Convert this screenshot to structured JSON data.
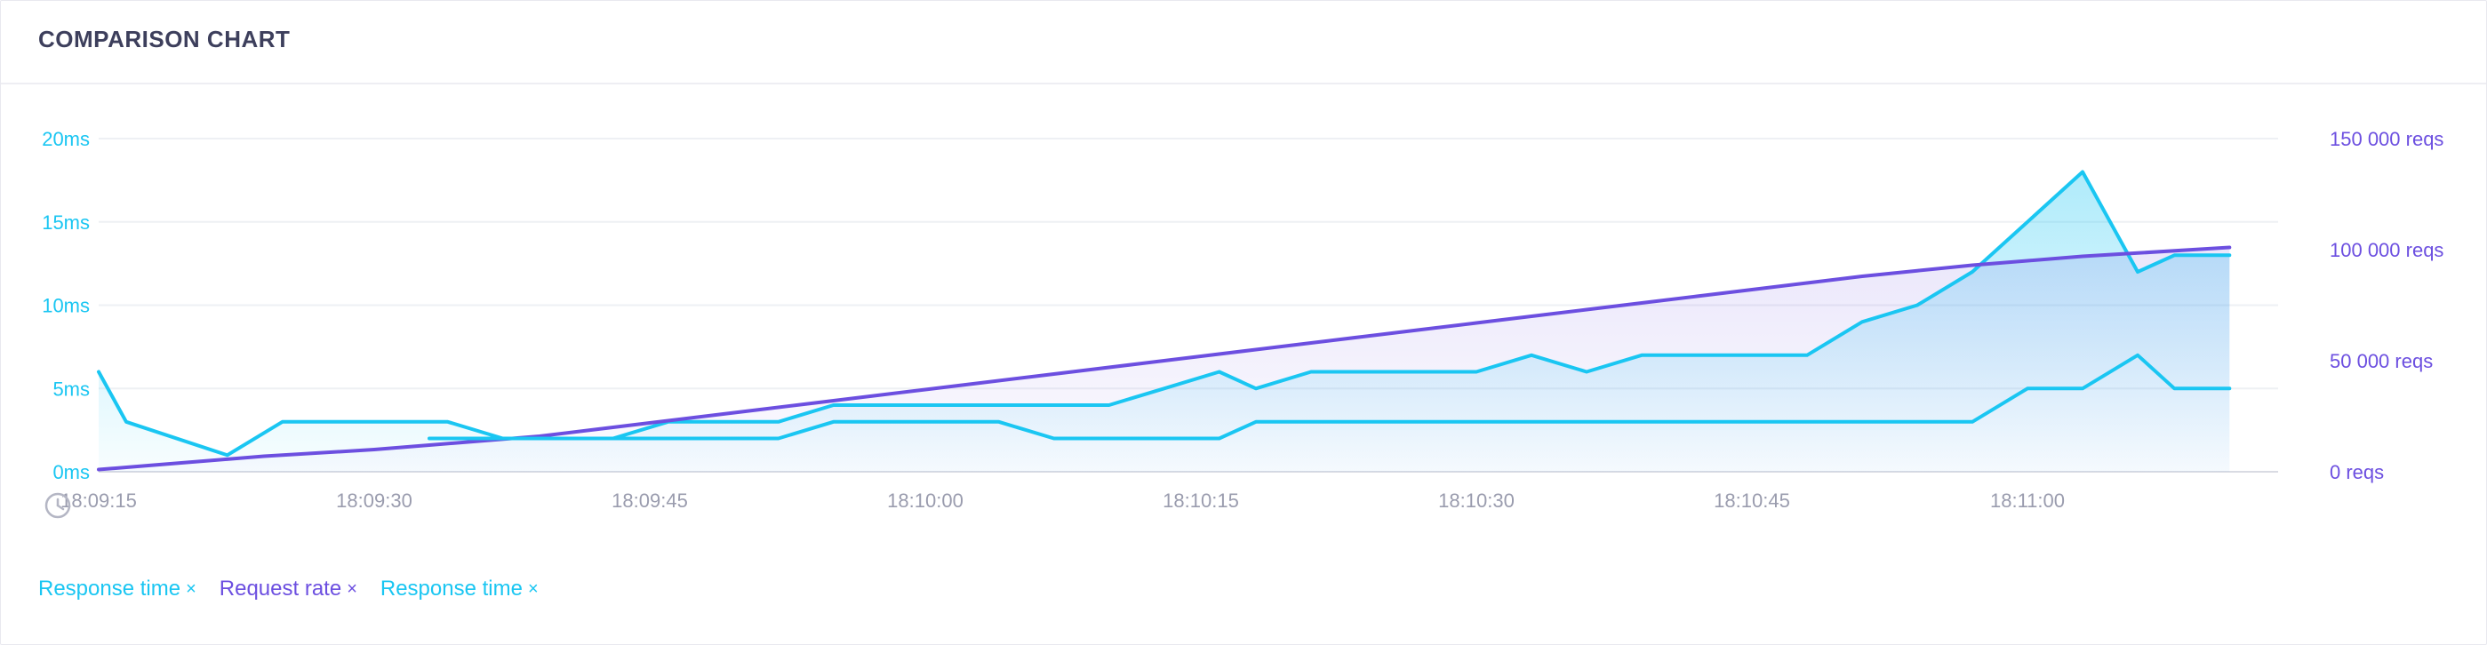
{
  "header": {
    "title": "COMPARISON CHART"
  },
  "colors": {
    "response": "#1ac6f2",
    "request": "#6c4fe0",
    "grid": "#eef0f4",
    "axis_text": "#9a9cae"
  },
  "icons": {
    "time_axis": "clock-icon",
    "legend_remove": "close-x"
  },
  "chart_data": {
    "type": "line",
    "x_format": "HH:MM:SS",
    "x_ticks": [
      "18:09:15",
      "18:09:30",
      "18:09:45",
      "18:10:00",
      "18:10:15",
      "18:10:30",
      "18:10:45",
      "18:11:00"
    ],
    "y_left": {
      "ticks": [
        "0ms",
        "5ms",
        "10ms",
        "15ms",
        "20ms"
      ],
      "range": [
        0,
        20
      ],
      "unit": "ms"
    },
    "y_right": {
      "ticks": [
        "0 reqs",
        "50 000 reqs",
        "100 000 reqs",
        "150 000 reqs"
      ],
      "range": [
        0,
        150000
      ],
      "unit": "reqs"
    },
    "grid": true,
    "legend_position": "bottom-left",
    "series": [
      {
        "name": "Response time",
        "axis": "left",
        "color": "#1ac6f2",
        "fill": true,
        "x": [
          "18:09:15",
          "18:09:16.5",
          "18:09:22",
          "18:09:25",
          "18:09:28",
          "18:09:31",
          "18:09:34",
          "18:09:37",
          "18:09:40",
          "18:09:43",
          "18:09:46",
          "18:09:49",
          "18:09:52",
          "18:09:55",
          "18:09:58",
          "18:10:01",
          "18:10:04",
          "18:10:07",
          "18:10:10",
          "18:10:13",
          "18:10:16",
          "18:10:18",
          "18:10:21",
          "18:10:24",
          "18:10:27",
          "18:10:30",
          "18:10:33",
          "18:10:36",
          "18:10:39",
          "18:10:42",
          "18:10:45",
          "18:10:48",
          "18:10:51",
          "18:10:54",
          "18:10:57",
          "18:11:00",
          "18:11:03",
          "18:11:06",
          "18:11:08",
          "18:11:11"
        ],
        "y": [
          6,
          3,
          1,
          3,
          3,
          3,
          3,
          2,
          2,
          2,
          3,
          3,
          3,
          4,
          4,
          4,
          4,
          4,
          4,
          5,
          6,
          5,
          6,
          6,
          6,
          6,
          7,
          6,
          7,
          7,
          7,
          7,
          9,
          10,
          12,
          15,
          18,
          12,
          13,
          13
        ]
      },
      {
        "name": "Request rate",
        "axis": "right",
        "color": "#6c4fe0",
        "fill": true,
        "x": [
          "18:09:15",
          "18:09:18",
          "18:09:21",
          "18:09:24",
          "18:09:27",
          "18:09:30",
          "18:09:33",
          "18:09:36",
          "18:09:39",
          "18:09:42",
          "18:09:45",
          "18:09:48",
          "18:09:51",
          "18:09:54",
          "18:09:57",
          "18:10:00",
          "18:10:03",
          "18:10:06",
          "18:10:09",
          "18:10:12",
          "18:10:15",
          "18:10:18",
          "18:10:21",
          "18:10:24",
          "18:10:27",
          "18:10:30",
          "18:10:33",
          "18:10:36",
          "18:10:39",
          "18:10:42",
          "18:10:45",
          "18:10:48",
          "18:10:51",
          "18:10:54",
          "18:10:57",
          "18:11:00",
          "18:11:03",
          "18:11:06",
          "18:11:09",
          "18:11:11"
        ],
        "y": [
          1000,
          3000,
          5000,
          7000,
          8500,
          10000,
          12000,
          14000,
          16000,
          19000,
          22000,
          25000,
          28000,
          31000,
          34000,
          37000,
          40000,
          43000,
          46000,
          49000,
          52000,
          55000,
          58000,
          61000,
          64000,
          67000,
          70000,
          73000,
          76000,
          79000,
          82000,
          85000,
          88000,
          90500,
          93000,
          95000,
          97000,
          98500,
          100000,
          101000
        ]
      },
      {
        "name": "Response time",
        "axis": "left",
        "color": "#1ac6f2",
        "fill": false,
        "x": [
          "18:09:33",
          "18:09:37",
          "18:09:40",
          "18:09:43",
          "18:09:46",
          "18:09:49",
          "18:09:52",
          "18:09:55",
          "18:09:58",
          "18:10:01",
          "18:10:04",
          "18:10:07",
          "18:10:10",
          "18:10:13",
          "18:10:16",
          "18:10:18",
          "18:10:21",
          "18:10:24",
          "18:10:27",
          "18:10:30",
          "18:10:33",
          "18:10:36",
          "18:10:39",
          "18:10:42",
          "18:10:45",
          "18:10:48",
          "18:10:51",
          "18:10:54",
          "18:10:57",
          "18:11:00",
          "18:11:03",
          "18:11:06",
          "18:11:08",
          "18:11:11"
        ],
        "y": [
          2,
          2,
          2,
          2,
          2,
          2,
          2,
          3,
          3,
          3,
          3,
          2,
          2,
          2,
          2,
          3,
          3,
          3,
          3,
          3,
          3,
          3,
          3,
          3,
          3,
          3,
          3,
          3,
          3,
          5,
          5,
          7,
          5,
          5
        ]
      }
    ]
  },
  "legend": [
    {
      "label": "Response time",
      "remove": "×",
      "color": "#1ac6f2"
    },
    {
      "label": "Request rate",
      "remove": "×",
      "color": "#6c4fe0"
    },
    {
      "label": "Response time",
      "remove": "×",
      "color": "#1ac6f2"
    }
  ]
}
